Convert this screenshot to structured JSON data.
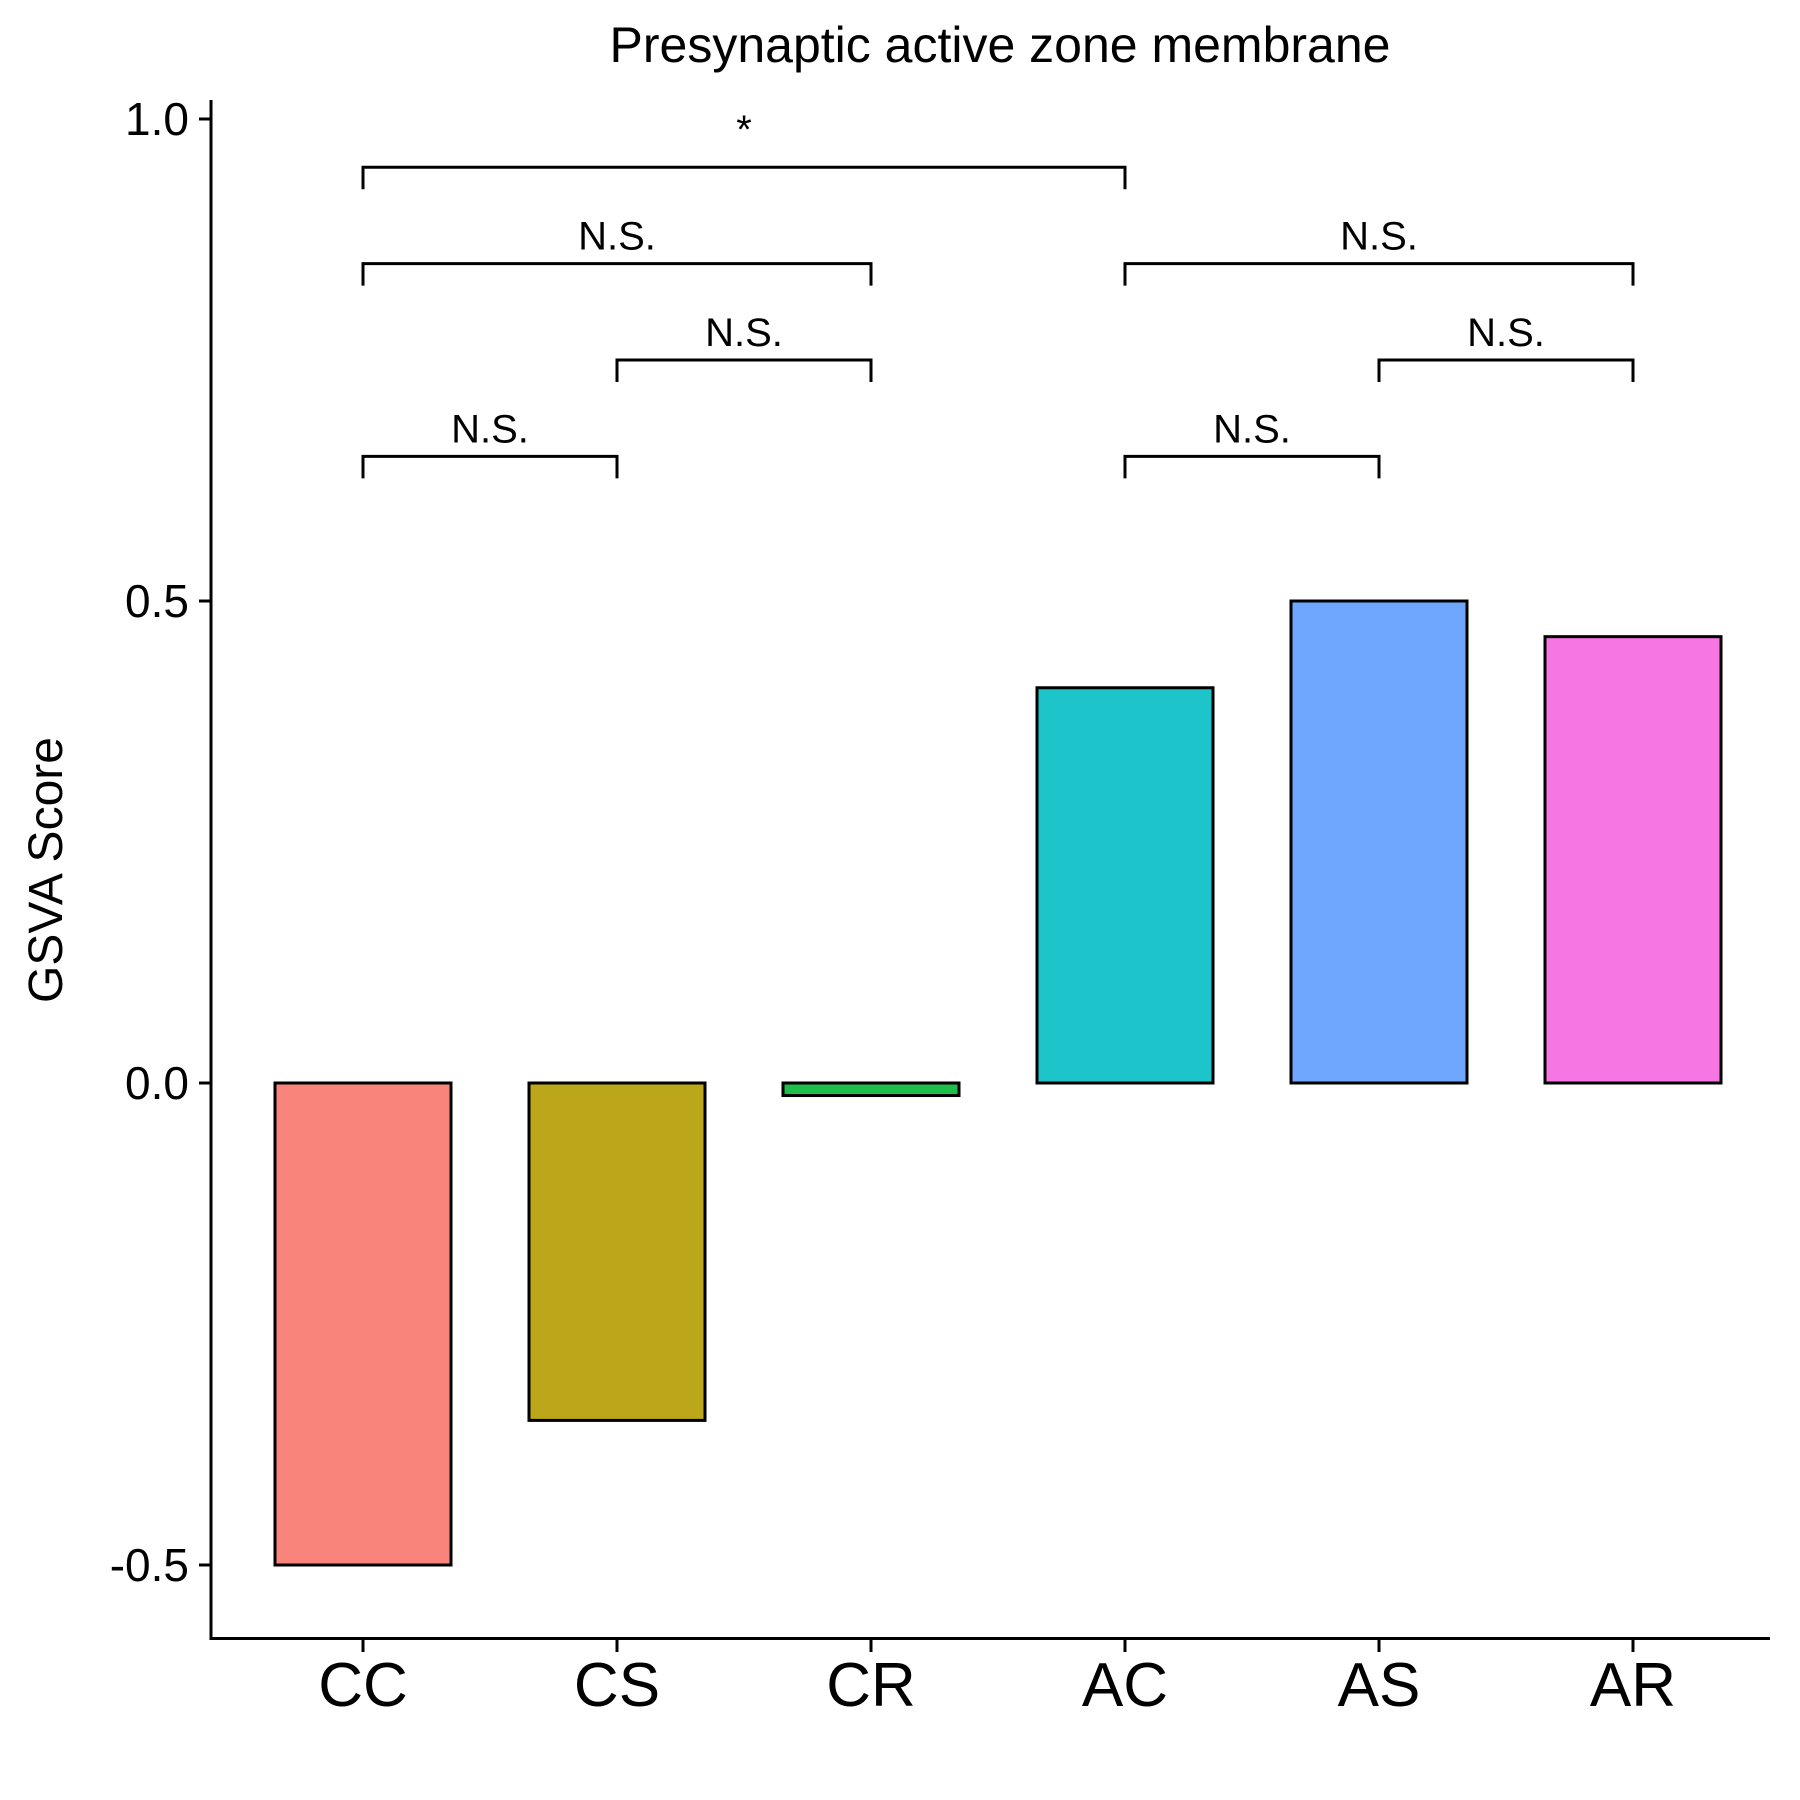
{
  "chart_data": {
    "type": "bar",
    "title": "Presynaptic active zone membrane",
    "xlabel": "",
    "ylabel": "GSVA Score",
    "categories": [
      "CC",
      "CS",
      "CR",
      "AC",
      "AS",
      "AR"
    ],
    "values": [
      -0.5,
      -0.35,
      -0.013,
      0.41,
      0.5,
      0.463
    ],
    "colors": [
      "#F8847C",
      "#BCA71A",
      "#1EBE4A",
      "#1DC5CB",
      "#6FA7FF",
      "#F676E4"
    ],
    "ylim": [
      -0.57,
      1.01
    ],
    "yticks": [
      -0.5,
      0.0,
      0.5,
      1.0
    ],
    "ytick_labels": [
      "-0.5",
      "0.0",
      "0.5",
      "1.0"
    ],
    "grid": false,
    "legend": "none",
    "significance": [
      {
        "from": "CC",
        "to": "CS",
        "label": "N.S.",
        "y": 0.65
      },
      {
        "from": "CS",
        "to": "CR",
        "label": "N.S.",
        "y": 0.75
      },
      {
        "from": "CC",
        "to": "CR",
        "label": "N.S.",
        "y": 0.85
      },
      {
        "from": "CC",
        "to": "AC",
        "label": "*",
        "y": 0.95
      },
      {
        "from": "AC",
        "to": "AS",
        "label": "N.S.",
        "y": 0.65
      },
      {
        "from": "AS",
        "to": "AR",
        "label": "N.S.",
        "y": 0.75
      },
      {
        "from": "AC",
        "to": "AR",
        "label": "N.S.",
        "y": 0.85
      }
    ]
  }
}
